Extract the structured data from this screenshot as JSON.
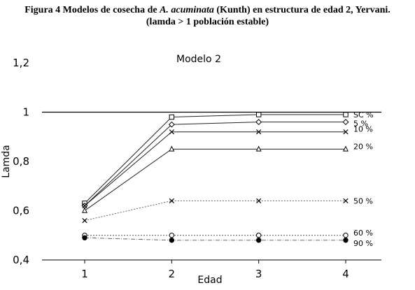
{
  "caption": {
    "line1_pre": "Figura 4 Modelos de cosecha de ",
    "line1_italic": "A. acuminata",
    "line1_post": " (Kunth) en estructura de edad 2, Yervani.",
    "line2": "(lamda > 1 población estable)"
  },
  "chart_data": {
    "type": "line",
    "title": "Modelo 2",
    "xlabel": "Edad",
    "ylabel": "Lamda",
    "x": [
      1,
      2,
      3,
      4
    ],
    "xticks": [
      "1",
      "2",
      "3",
      "4"
    ],
    "ylim": [
      0.4,
      1.2
    ],
    "yticks": [
      "0,4",
      "0,6",
      "0,8",
      "1",
      "1,2"
    ],
    "ytick_values": [
      0.4,
      0.6,
      0.8,
      1.0,
      1.2
    ],
    "reference_line": 1.0,
    "grid": false,
    "series": [
      {
        "name": "SC %",
        "values": [
          0.63,
          0.98,
          0.99,
          0.99
        ],
        "marker": "square",
        "line": "solid"
      },
      {
        "name": "5 %",
        "values": [
          0.62,
          0.95,
          0.96,
          0.96
        ],
        "marker": "diamond",
        "line": "solid"
      },
      {
        "name": "10 %",
        "values": [
          0.62,
          0.92,
          0.92,
          0.92
        ],
        "marker": "x",
        "line": "solid"
      },
      {
        "name": "20 %",
        "values": [
          0.6,
          0.85,
          0.85,
          0.85
        ],
        "marker": "triangle",
        "line": "solid"
      },
      {
        "name": "50 %",
        "values": [
          0.56,
          0.64,
          0.64,
          0.64
        ],
        "marker": "x",
        "line": "dotted"
      },
      {
        "name": "60 %",
        "values": [
          0.5,
          0.5,
          0.5,
          0.5
        ],
        "marker": "circle",
        "line": "dotted"
      },
      {
        "name": "90 %",
        "values": [
          0.49,
          0.48,
          0.48,
          0.48
        ],
        "marker": "filled-circle",
        "line": "dashdot"
      }
    ]
  }
}
